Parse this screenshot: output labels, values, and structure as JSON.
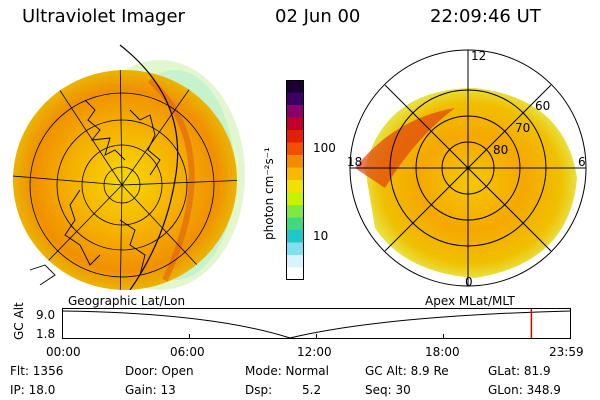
{
  "header": {
    "instrument": "Ultraviolet Imager",
    "date": "02 Jun 00",
    "time": "22:09:46 UT"
  },
  "left_panel": {
    "projection_label": "Geographic Lat/Lon"
  },
  "right_panel": {
    "projection_label": "Apex MLat/MLT",
    "mlt_labels": {
      "top": "12",
      "left": "18",
      "right": "6",
      "bottom": "0"
    },
    "lat_labels": [
      "60",
      "70",
      "80"
    ]
  },
  "colorbar": {
    "unit_label": "photon cm⁻²s⁻¹",
    "tick_labels": [
      "100",
      "10"
    ],
    "colors_top_to_bottom": [
      "#1a0033",
      "#3b0066",
      "#8a006b",
      "#c0002a",
      "#e02000",
      "#f05000",
      "#f58a00",
      "#f7b800",
      "#f2e000",
      "#c8f000",
      "#80e840",
      "#40d880",
      "#20c8c8",
      "#80e0f0",
      "#d8f4fa",
      "#ffffff"
    ]
  },
  "orbit_plot": {
    "ylabel": "GC Alt",
    "y_ticks": [
      "9.0",
      "1.8"
    ],
    "x_ticks": [
      "00:00",
      "06:00",
      "12:00",
      "18:00",
      "23:59"
    ],
    "current_marker_color": "#e00000",
    "current_time_fraction": 0.923
  },
  "info": {
    "flt": "Flt: 1356",
    "ip": "IP: 18.0",
    "door": "Door: Open",
    "gain": "Gain: 13",
    "mode": "Mode: Normal",
    "dsp_label": "Dsp:",
    "dsp_value": "5.2",
    "gc_alt": "GC Alt: 8.9 Re",
    "seq": "Seq: 30",
    "glat": "GLat: 81.9",
    "glon": "GLon: 348.9"
  }
}
